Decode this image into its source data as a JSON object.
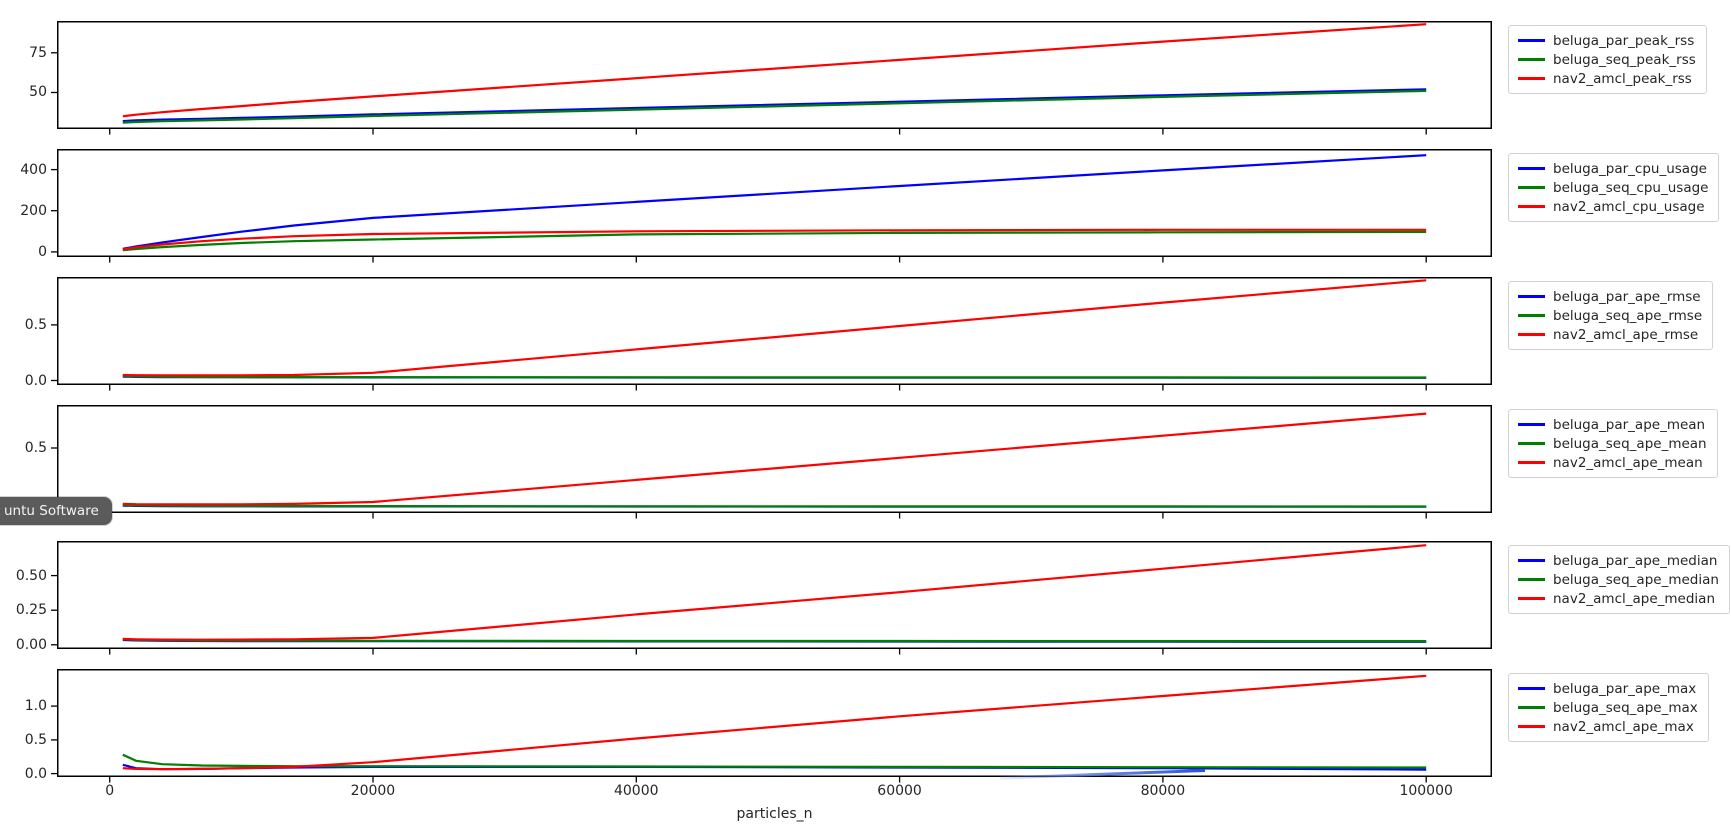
{
  "window": {
    "tooltip_text": "untu Software"
  },
  "figure": {
    "xlabel": "particles_n",
    "x_ticks": [
      0,
      20000,
      40000,
      60000,
      80000,
      100000
    ],
    "x_tick_labels": [
      "0",
      "20000",
      "40000",
      "60000",
      "80000",
      "100000"
    ],
    "xlim": [
      -4000,
      105000
    ],
    "grid": false,
    "legend_position": "outside-upper-right",
    "colors": {
      "blue": "#0000ff",
      "green": "#008000",
      "red": "#ff0000"
    }
  },
  "chart_data": [
    {
      "id": "peak_rss",
      "type": "line",
      "x": [
        1000,
        2000,
        4000,
        7000,
        10000,
        14000,
        20000,
        40000,
        60000,
        80000,
        100000
      ],
      "ylim": [
        27,
        95
      ],
      "yticks": [
        50,
        75
      ],
      "ytick_labels": [
        "50",
        "75"
      ],
      "series": [
        {
          "name": "beluga_par_peak_rss",
          "color": "#0000ff",
          "values": [
            32,
            32.4,
            32.9,
            33.4,
            34,
            34.8,
            36.2,
            40.2,
            44.2,
            48.2,
            52
          ]
        },
        {
          "name": "beluga_seq_peak_rss",
          "color": "#008000",
          "values": [
            31,
            31.4,
            31.9,
            32.4,
            33,
            33.8,
            35.2,
            39.2,
            43.2,
            47.2,
            51
          ]
        },
        {
          "name": "nav2_amcl_peak_rss",
          "color": "#ff0000",
          "values": [
            35,
            36,
            37.6,
            39.6,
            41.4,
            44,
            47.5,
            59,
            70.5,
            82,
            93
          ]
        }
      ]
    },
    {
      "id": "cpu_usage",
      "type": "line",
      "x": [
        1000,
        2000,
        4000,
        7000,
        10000,
        14000,
        20000,
        40000,
        60000,
        80000,
        100000
      ],
      "ylim": [
        -25,
        500
      ],
      "yticks": [
        0,
        200,
        400
      ],
      "ytick_labels": [
        "0",
        "200",
        "400"
      ],
      "series": [
        {
          "name": "beluga_par_cpu_usage",
          "color": "#0000ff",
          "values": [
            15,
            26,
            46,
            72,
            98,
            128,
            165,
            243,
            320,
            396,
            470
          ]
        },
        {
          "name": "beluga_seq_cpu_usage",
          "color": "#008000",
          "values": [
            8,
            14,
            23,
            34,
            43,
            52,
            60,
            85,
            92,
            95,
            97
          ]
        },
        {
          "name": "nav2_amcl_cpu_usage",
          "color": "#ff0000",
          "values": [
            12,
            22,
            36,
            52,
            64,
            76,
            87,
            100,
            105,
            107,
            107
          ]
        }
      ]
    },
    {
      "id": "ape_rmse",
      "type": "line",
      "x": [
        1000,
        2000,
        4000,
        7000,
        10000,
        14000,
        20000,
        40000,
        60000,
        80000,
        100000
      ],
      "ylim": [
        -0.04,
        0.93
      ],
      "yticks": [
        0,
        0.5
      ],
      "ytick_labels": [
        "0.0",
        "0.5"
      ],
      "series": [
        {
          "name": "beluga_par_ape_rmse",
          "color": "#0000ff",
          "values": [
            0.035,
            0.033,
            0.031,
            0.03,
            0.03,
            0.029,
            0.028,
            0.027,
            0.026,
            0.026,
            0.025
          ]
        },
        {
          "name": "beluga_seq_ape_rmse",
          "color": "#008000",
          "values": [
            0.04,
            0.037,
            0.034,
            0.032,
            0.031,
            0.031,
            0.03,
            0.029,
            0.028,
            0.028,
            0.027
          ]
        },
        {
          "name": "nav2_amcl_ape_rmse",
          "color": "#ff0000",
          "values": [
            0.05,
            0.048,
            0.047,
            0.046,
            0.047,
            0.05,
            0.07,
            0.28,
            0.49,
            0.7,
            0.9
          ]
        }
      ]
    },
    {
      "id": "ape_mean",
      "type": "line",
      "x": [
        1000,
        2000,
        4000,
        7000,
        10000,
        14000,
        20000,
        40000,
        60000,
        80000,
        100000
      ],
      "ylim": [
        -0.03,
        0.85
      ],
      "yticks": [
        0,
        0.5
      ],
      "ytick_labels": [
        "0.0",
        "0.5"
      ],
      "series": [
        {
          "name": "beluga_par_ape_mean",
          "color": "#0000ff",
          "values": [
            0.03,
            0.028,
            0.026,
            0.025,
            0.025,
            0.024,
            0.024,
            0.023,
            0.022,
            0.022,
            0.021
          ]
        },
        {
          "name": "beluga_seq_ape_mean",
          "color": "#008000",
          "values": [
            0.035,
            0.032,
            0.03,
            0.028,
            0.027,
            0.027,
            0.026,
            0.025,
            0.024,
            0.024,
            0.023
          ]
        },
        {
          "name": "nav2_amcl_ape_mean",
          "color": "#ff0000",
          "values": [
            0.045,
            0.042,
            0.04,
            0.04,
            0.041,
            0.044,
            0.06,
            0.24,
            0.42,
            0.6,
            0.78
          ]
        }
      ]
    },
    {
      "id": "ape_median",
      "type": "line",
      "x": [
        1000,
        2000,
        4000,
        7000,
        10000,
        14000,
        20000,
        40000,
        60000,
        80000,
        100000
      ],
      "ylim": [
        -0.03,
        0.75
      ],
      "yticks": [
        0,
        0.25,
        0.5
      ],
      "ytick_labels": [
        "0.00",
        "0.25",
        "0.50"
      ],
      "series": [
        {
          "name": "beluga_par_ape_median",
          "color": "#0000ff",
          "values": [
            0.035,
            0.032,
            0.029,
            0.028,
            0.027,
            0.026,
            0.026,
            0.025,
            0.024,
            0.023,
            0.022
          ]
        },
        {
          "name": "beluga_seq_ape_median",
          "color": "#008000",
          "values": [
            0.04,
            0.036,
            0.033,
            0.031,
            0.03,
            0.03,
            0.029,
            0.028,
            0.028,
            0.027,
            0.027
          ]
        },
        {
          "name": "nav2_amcl_ape_median",
          "color": "#ff0000",
          "values": [
            0.043,
            0.04,
            0.038,
            0.037,
            0.038,
            0.04,
            0.05,
            0.22,
            0.38,
            0.55,
            0.72
          ]
        }
      ]
    },
    {
      "id": "ape_max",
      "type": "line",
      "x": [
        1000,
        2000,
        4000,
        7000,
        10000,
        14000,
        20000,
        40000,
        60000,
        80000,
        100000
      ],
      "ylim": [
        -0.05,
        1.55
      ],
      "yticks": [
        0,
        0.5,
        1.0
      ],
      "ytick_labels": [
        "0.0",
        "0.5",
        "1.0"
      ],
      "series": [
        {
          "name": "beluga_par_ape_max",
          "color": "#0000ff",
          "values": [
            0.13,
            0.08,
            0.065,
            0.07,
            0.08,
            0.09,
            0.1,
            0.1,
            0.09,
            0.08,
            0.06
          ]
        },
        {
          "name": "beluga_seq_ape_max",
          "color": "#008000",
          "values": [
            0.28,
            0.19,
            0.14,
            0.12,
            0.115,
            0.11,
            0.11,
            0.105,
            0.1,
            0.095,
            0.09
          ]
        },
        {
          "name": "nav2_amcl_ape_max",
          "color": "#ff0000",
          "values": [
            0.08,
            0.07,
            0.065,
            0.07,
            0.08,
            0.1,
            0.17,
            0.52,
            0.85,
            1.15,
            1.45
          ]
        }
      ]
    }
  ]
}
